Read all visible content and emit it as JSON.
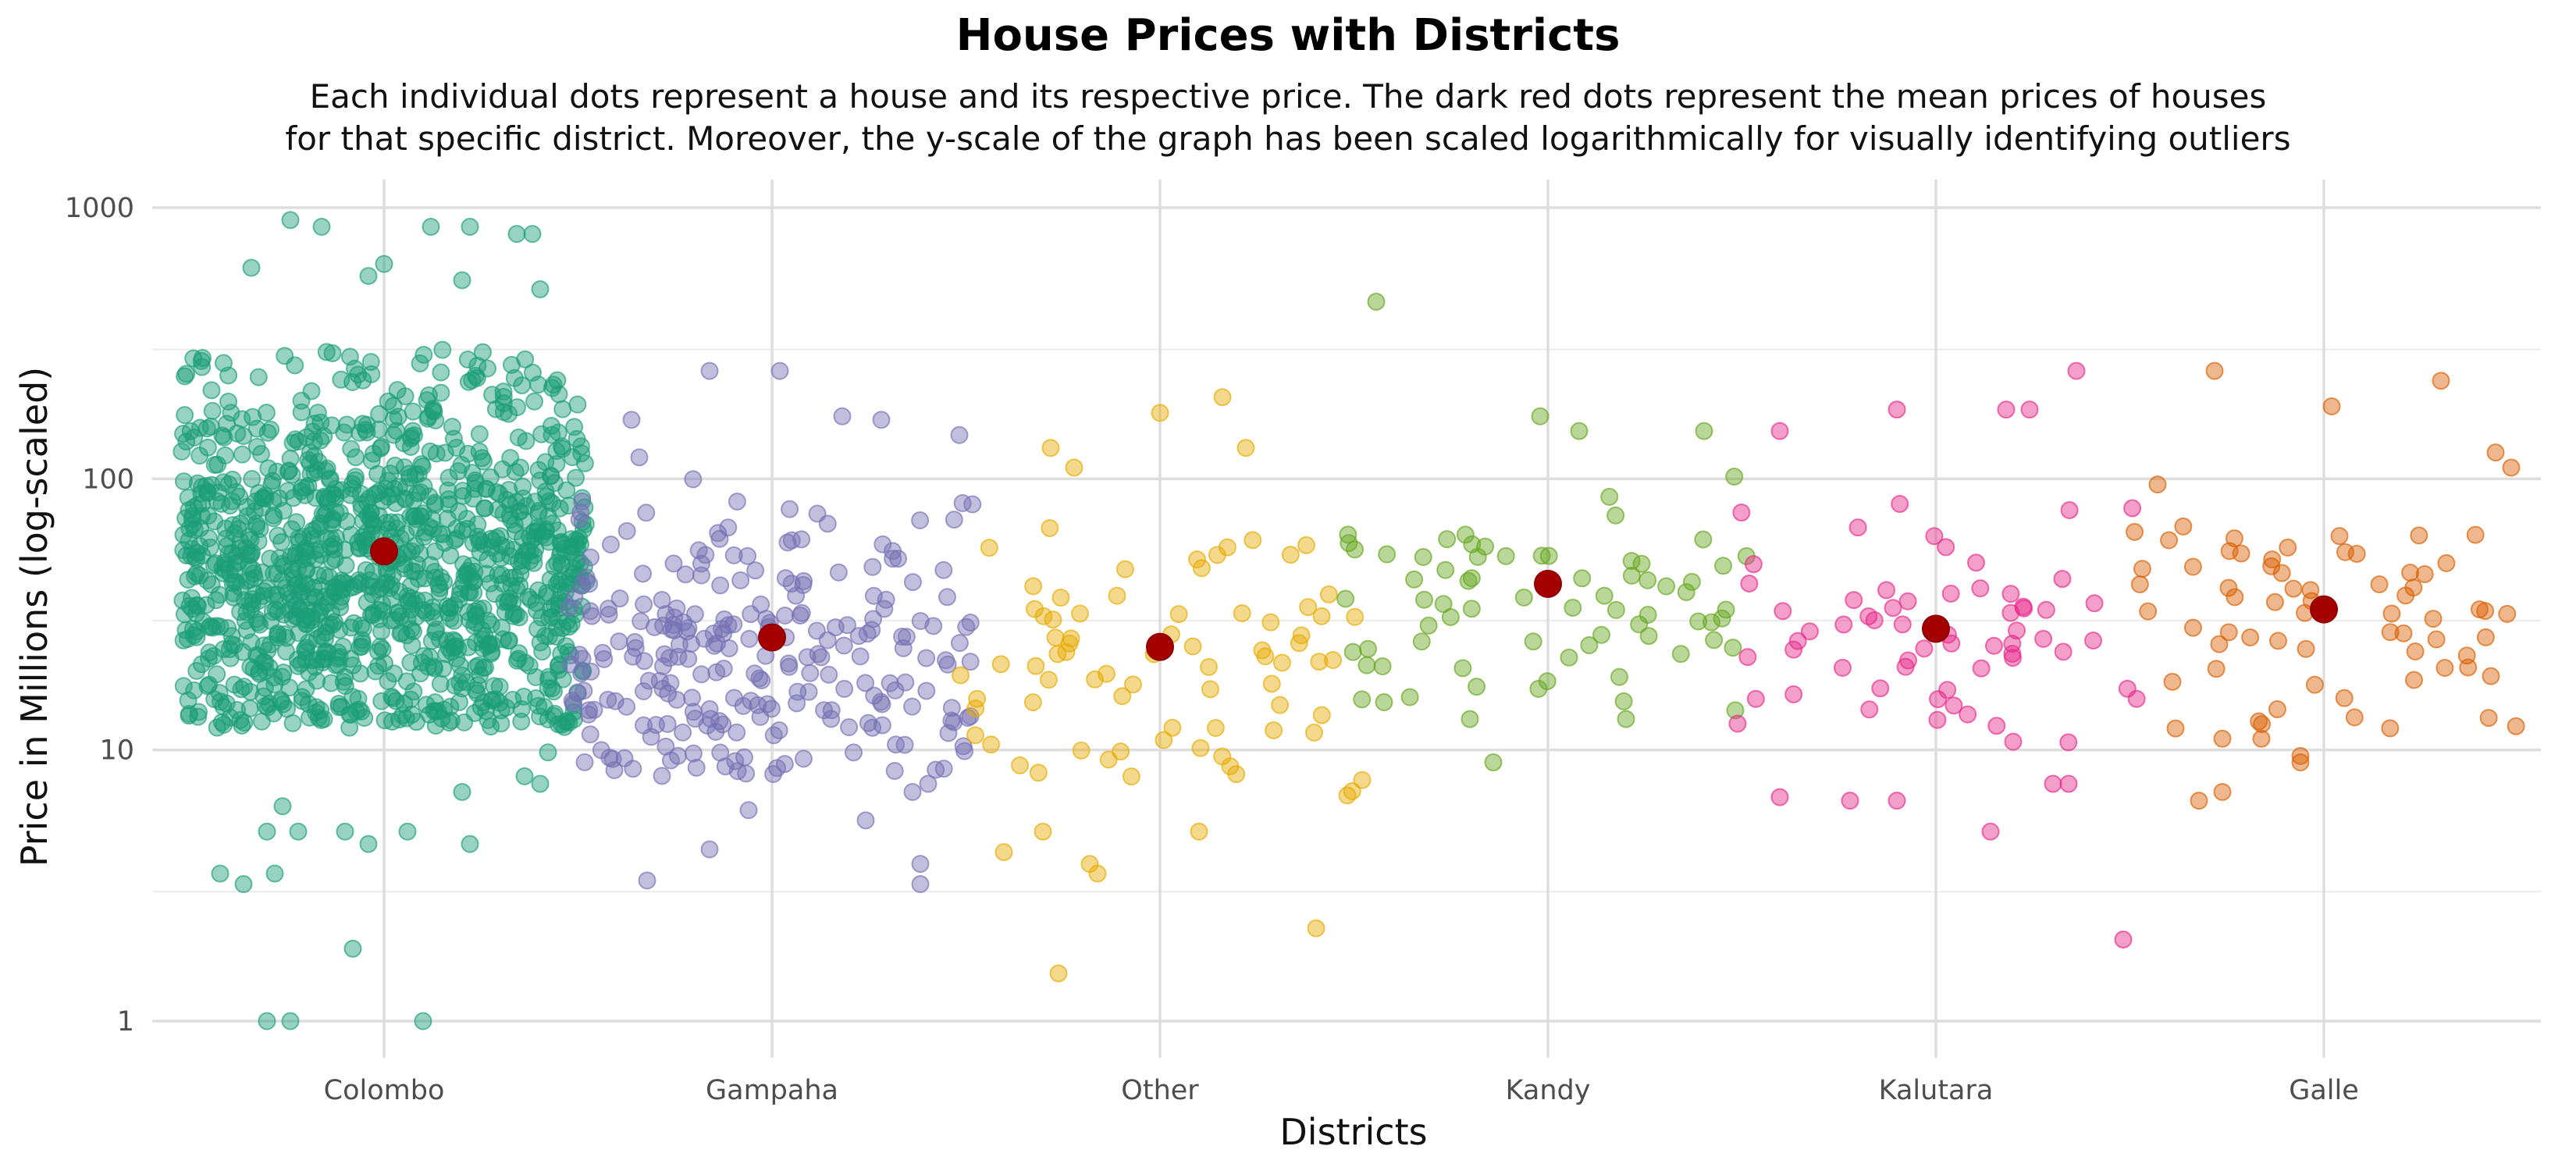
{
  "chart_data": {
    "type": "scatter",
    "title": "House Prices with Districts",
    "subtitle_lines": [
      "Each individual dots represent a house and its respective price. The dark red dots represent the mean prices of houses",
      "for that specific district. Moreover, the y-scale of the graph has been scaled logarithmically for visually identifying outliers"
    ],
    "xlabel": "Districts",
    "ylabel": "Price in Millions (log-scaled)",
    "y_scale": "log10",
    "ylim": [
      0.75,
      1100
    ],
    "y_ticks": [
      1,
      10,
      100,
      1000
    ],
    "y_tick_labels": [
      "1",
      "10",
      "100",
      "1000"
    ],
    "grid": true,
    "legend": "none",
    "mean_color": "#a50000",
    "categories": [
      "Colombo",
      "Gampaha",
      "Other",
      "Kandy",
      "Kalutara",
      "Galle"
    ],
    "series": [
      {
        "category": "Colombo",
        "color": "#1b9e77",
        "mean": 54,
        "points": [
          {
            "dx": -0.15,
            "y": 1.0
          },
          {
            "dx": -0.12,
            "y": 1.0
          },
          {
            "dx": 0.05,
            "y": 1.0
          },
          {
            "dx": -0.04,
            "y": 1.85
          },
          {
            "dx": -0.21,
            "y": 3.5
          },
          {
            "dx": -0.18,
            "y": 3.2
          },
          {
            "dx": -0.14,
            "y": 3.5
          },
          {
            "dx": -0.15,
            "y": 5.0
          },
          {
            "dx": -0.11,
            "y": 5.0
          },
          {
            "dx": -0.05,
            "y": 5.0
          },
          {
            "dx": 0.03,
            "y": 5.0
          },
          {
            "dx": -0.02,
            "y": 4.5
          },
          {
            "dx": 0.11,
            "y": 4.5
          },
          {
            "dx": 0.1,
            "y": 7.0
          },
          {
            "dx": 0.2,
            "y": 7.5
          },
          {
            "dx": 0.21,
            "y": 9.8
          },
          {
            "dx": 0.18,
            "y": 8.0
          },
          {
            "dx": -0.13,
            "y": 6.2
          },
          {
            "dx": -0.12,
            "y": 900
          },
          {
            "dx": -0.08,
            "y": 850
          },
          {
            "dx": 0.06,
            "y": 850
          },
          {
            "dx": 0.11,
            "y": 850
          },
          {
            "dx": 0.17,
            "y": 800
          },
          {
            "dx": 0.19,
            "y": 800
          },
          {
            "dx": -0.17,
            "y": 600
          },
          {
            "dx": 0.0,
            "y": 620
          },
          {
            "dx": -0.02,
            "y": 560
          },
          {
            "dx": 0.1,
            "y": 540
          },
          {
            "dx": 0.2,
            "y": 500
          }
        ],
        "cloud": {
          "count": 1200,
          "dx_min": -0.26,
          "dx_max": 0.26,
          "y_min": 12,
          "y_max": 300
        }
      },
      {
        "category": "Gampaha",
        "color": "#7570b3",
        "mean": 26,
        "points": [
          {
            "dx": -0.16,
            "y": 3.3
          },
          {
            "dx": 0.19,
            "y": 3.2
          },
          {
            "dx": 0.19,
            "y": 3.8
          },
          {
            "dx": -0.08,
            "y": 4.3
          },
          {
            "dx": 0.12,
            "y": 5.5
          },
          {
            "dx": -0.03,
            "y": 6.0
          },
          {
            "dx": 0.2,
            "y": 7.5
          },
          {
            "dx": 0.18,
            "y": 7.0
          },
          {
            "dx": -0.08,
            "y": 250
          },
          {
            "dx": 0.01,
            "y": 250
          },
          {
            "dx": -0.18,
            "y": 165
          },
          {
            "dx": 0.09,
            "y": 170
          },
          {
            "dx": 0.14,
            "y": 165
          },
          {
            "dx": 0.24,
            "y": 145
          },
          {
            "dx": -0.17,
            "y": 120
          }
        ],
        "cloud": {
          "count": 250,
          "dx_min": -0.26,
          "dx_max": 0.26,
          "y_min": 8,
          "y_max": 100
        }
      },
      {
        "category": "Other",
        "color": "#e6ab02",
        "mean": 24,
        "points": [
          {
            "dx": -0.13,
            "y": 1.5
          },
          {
            "dx": 0.2,
            "y": 2.2
          },
          {
            "dx": -0.08,
            "y": 3.5
          },
          {
            "dx": -0.09,
            "y": 3.8
          },
          {
            "dx": -0.2,
            "y": 4.2
          },
          {
            "dx": -0.15,
            "y": 5.0
          },
          {
            "dx": 0.05,
            "y": 5.0
          },
          {
            "dx": 0.24,
            "y": 6.8
          },
          {
            "dx": 0.0,
            "y": 175
          },
          {
            "dx": 0.08,
            "y": 200
          },
          {
            "dx": -0.14,
            "y": 130
          },
          {
            "dx": 0.11,
            "y": 130
          },
          {
            "dx": -0.11,
            "y": 110
          }
        ],
        "cloud": {
          "count": 75,
          "dx_min": -0.26,
          "dx_max": 0.26,
          "y_min": 7,
          "y_max": 100
        }
      },
      {
        "category": "Kandy",
        "color": "#66a61e",
        "mean": 41,
        "points": [
          {
            "dx": -0.22,
            "y": 450
          },
          {
            "dx": -0.07,
            "y": 9.0
          },
          {
            "dx": -0.21,
            "y": 15
          },
          {
            "dx": -0.1,
            "y": 13
          },
          {
            "dx": 0.1,
            "y": 13
          },
          {
            "dx": 0.24,
            "y": 14
          },
          {
            "dx": -0.01,
            "y": 170
          },
          {
            "dx": 0.04,
            "y": 150
          },
          {
            "dx": 0.2,
            "y": 150
          }
        ],
        "cloud": {
          "count": 68,
          "dx_min": -0.26,
          "dx_max": 0.26,
          "y_min": 14,
          "y_max": 120
        }
      },
      {
        "category": "Kalutara",
        "color": "#e7298a",
        "mean": 28,
        "points": [
          {
            "dx": 0.24,
            "y": 2.0
          },
          {
            "dx": 0.07,
            "y": 5.0
          },
          {
            "dx": -0.2,
            "y": 6.7
          },
          {
            "dx": -0.11,
            "y": 6.5
          },
          {
            "dx": -0.05,
            "y": 6.5
          },
          {
            "dx": 0.15,
            "y": 7.5
          },
          {
            "dx": 0.17,
            "y": 7.5
          },
          {
            "dx": 0.18,
            "y": 250
          },
          {
            "dx": -0.05,
            "y": 180
          },
          {
            "dx": 0.09,
            "y": 180
          },
          {
            "dx": 0.12,
            "y": 180
          },
          {
            "dx": -0.2,
            "y": 150
          }
        ],
        "cloud": {
          "count": 62,
          "dx_min": -0.26,
          "dx_max": 0.26,
          "y_min": 10,
          "y_max": 90
        }
      },
      {
        "category": "Galle",
        "color": "#d95f02",
        "mean": 33,
        "points": [
          {
            "dx": -0.16,
            "y": 6.5
          },
          {
            "dx": -0.13,
            "y": 7.0
          },
          {
            "dx": -0.03,
            "y": 9.0
          },
          {
            "dx": -0.03,
            "y": 9.5
          },
          {
            "dx": -0.08,
            "y": 11
          },
          {
            "dx": -0.13,
            "y": 11
          },
          {
            "dx": -0.19,
            "y": 12
          },
          {
            "dx": -0.14,
            "y": 250
          },
          {
            "dx": 0.01,
            "y": 185
          },
          {
            "dx": 0.15,
            "y": 230
          },
          {
            "dx": 0.22,
            "y": 125
          },
          {
            "dx": 0.24,
            "y": 110
          }
        ],
        "cloud": {
          "count": 65,
          "dx_min": -0.26,
          "dx_max": 0.26,
          "y_min": 12,
          "y_max": 100
        }
      }
    ]
  }
}
